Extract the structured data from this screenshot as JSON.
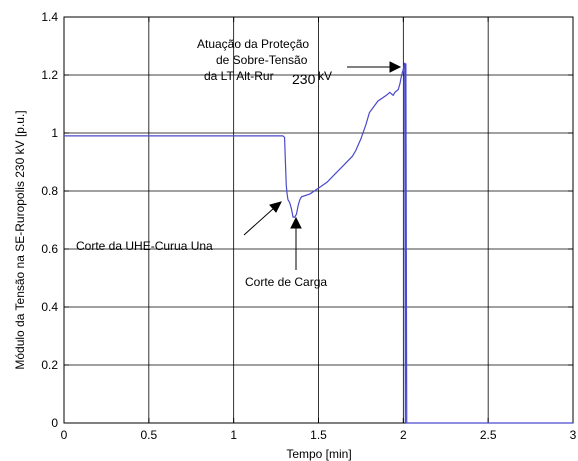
{
  "chart_data": {
    "type": "line",
    "xlabel": "Tempo [min]",
    "ylabel": "Módulo da Tensão na SE-Ruropolis 230 kV [p.u.]",
    "xlim": [
      0,
      3
    ],
    "ylim": [
      0,
      1.4
    ],
    "xticks": [
      0,
      0.5,
      1,
      1.5,
      2,
      2.5,
      3
    ],
    "yticks": [
      0,
      0.2,
      0.4,
      0.6,
      0.8,
      1,
      1.2,
      1.4
    ],
    "xtick_labels": [
      "0",
      "0.5",
      "1",
      "1.5",
      "2",
      "2.5",
      "3"
    ],
    "ytick_labels": [
      "0",
      "0.2",
      "0.4",
      "0.6",
      "0.8",
      "1",
      "1.2",
      "1.4"
    ],
    "grid": true,
    "line_color": "#4a4acd",
    "series": [
      {
        "x": [
          0,
          0.2,
          0.4,
          0.6,
          0.8,
          1.0,
          1.2,
          1.29,
          1.3,
          1.305,
          1.31,
          1.315,
          1.32,
          1.33,
          1.34,
          1.35,
          1.36,
          1.37,
          1.38,
          1.39,
          1.4,
          1.45,
          1.5,
          1.55,
          1.6,
          1.65,
          1.7,
          1.72,
          1.75,
          1.78,
          1.8,
          1.85,
          1.9,
          1.92,
          1.94,
          1.95,
          1.97,
          1.98,
          1.99,
          2.0,
          2.005,
          2.008,
          2.01,
          2.012,
          2.015,
          2.02,
          2.1,
          2.5,
          3.0
        ],
        "y": [
          0.99,
          0.99,
          0.99,
          0.99,
          0.99,
          0.99,
          0.99,
          0.99,
          0.985,
          0.9,
          0.82,
          0.79,
          0.77,
          0.76,
          0.74,
          0.71,
          0.71,
          0.72,
          0.75,
          0.77,
          0.78,
          0.79,
          0.81,
          0.83,
          0.86,
          0.89,
          0.92,
          0.94,
          0.98,
          1.03,
          1.07,
          1.11,
          1.13,
          1.14,
          1.13,
          1.14,
          1.15,
          1.17,
          1.2,
          1.22,
          1.24,
          1.24,
          0.6,
          0.0,
          1.24,
          0.0,
          0.0,
          0.0,
          0.0
        ]
      }
    ],
    "annotations": [
      {
        "text": "Atuação da Proteção",
        "x": 2.0,
        "y": 1.22
      },
      {
        "text": "de Sobre-Tensão",
        "x": 2.0,
        "y": 1.22
      },
      {
        "text": "da LT Alt-Rur",
        "x": 2.0,
        "y": 1.22
      },
      {
        "text": "230",
        "x": 2.0,
        "y": 1.22
      },
      {
        "text": "kV",
        "x": 2.0,
        "y": 1.22
      },
      {
        "text": "Corte da UHE-Curua Una",
        "x": 1.31,
        "y": 0.8
      },
      {
        "text": "Corte de Carga",
        "x": 1.37,
        "y": 0.71
      }
    ]
  }
}
